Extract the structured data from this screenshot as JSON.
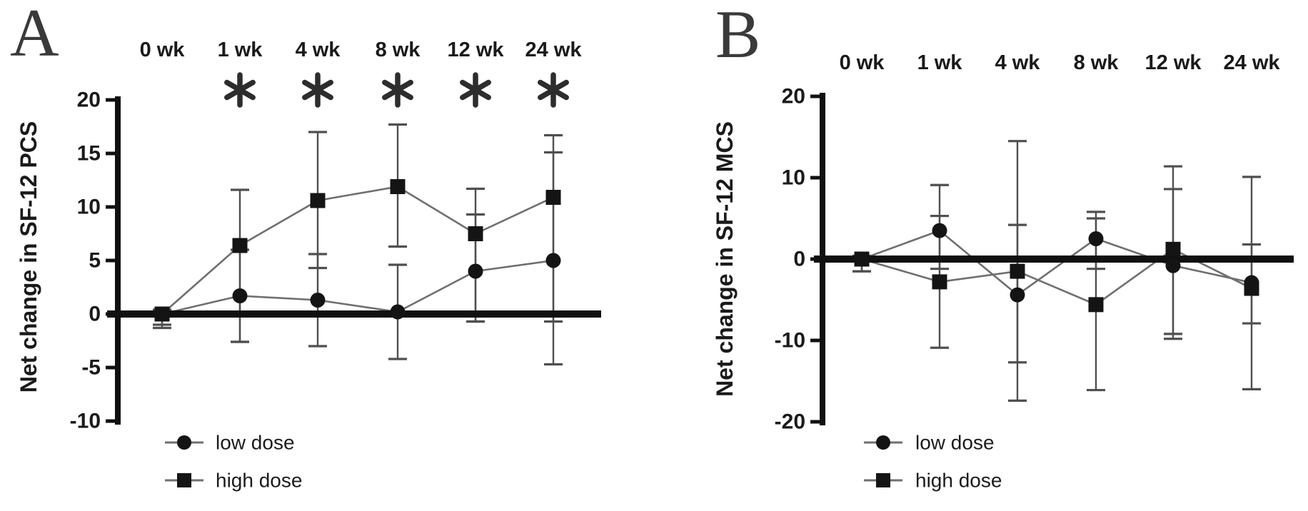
{
  "figure": {
    "background": "#ffffff",
    "colors": {
      "marker": "#141414",
      "series_line": "#6f6f6f",
      "error_bar": "#4f4f4f",
      "axis": "#101010",
      "tick_label": "#1a1a1a",
      "panel_letter": "#3a3a3a",
      "asterisk": "#2d2d2d",
      "legend_text": "#1c1c1c"
    }
  },
  "chart_data": [
    {
      "panel_label": "A",
      "type": "line",
      "ylabel": "Net change in SF-12 PCS",
      "categories": [
        "0 wk",
        "1 wk",
        "4 wk",
        "8 wk",
        "12 wk",
        "24 wk"
      ],
      "ylim": [
        -10,
        20
      ],
      "yticks": [
        20,
        15,
        10,
        5,
        0,
        -5,
        -10
      ],
      "grid": false,
      "significance": [
        "",
        "*",
        "*",
        "*",
        "*",
        "*"
      ],
      "legend_position": "bottom-left",
      "series": [
        {
          "name": "low dose",
          "marker": "circle",
          "values": [
            0,
            1.7,
            1.3,
            0.2,
            4.0,
            5.0
          ],
          "err_low": [
            -1.0,
            -2.6,
            -3.0,
            -4.2,
            -0.7,
            -4.7
          ],
          "err_high": [
            0.4,
            6.0,
            5.6,
            4.6,
            9.3,
            15.1
          ]
        },
        {
          "name": "high dose",
          "marker": "square",
          "values": [
            0,
            6.4,
            10.6,
            11.9,
            7.5,
            10.9
          ],
          "err_low": [
            -1.3,
            -2.6,
            4.3,
            6.3,
            -0.7,
            -0.7
          ],
          "err_high": [
            0.4,
            11.6,
            17.0,
            17.7,
            11.7,
            16.7
          ]
        }
      ]
    },
    {
      "panel_label": "B",
      "type": "line",
      "ylabel": "Net change in SF-12 MCS",
      "categories": [
        "0 wk",
        "1 wk",
        "4 wk",
        "8 wk",
        "12 wk",
        "24 wk"
      ],
      "ylim": [
        -20,
        20
      ],
      "yticks": [
        20,
        10,
        0,
        -10,
        -20
      ],
      "grid": false,
      "significance": [
        "",
        "",
        "",
        "",
        "",
        ""
      ],
      "legend_position": "bottom-left",
      "series": [
        {
          "name": "low dose",
          "marker": "circle",
          "values": [
            0,
            3.5,
            -4.4,
            2.5,
            -0.8,
            -2.9
          ],
          "err_low": [
            -1.5,
            -1.2,
            -12.7,
            -1.2,
            -9.8,
            -7.9
          ],
          "err_high": [
            0.4,
            9.1,
            4.2,
            5.8,
            8.6,
            1.8
          ]
        },
        {
          "name": "high dose",
          "marker": "square",
          "values": [
            0,
            -2.8,
            -1.5,
            -5.6,
            1.2,
            -3.6
          ],
          "err_low": [
            -1.5,
            -10.9,
            -17.4,
            -16.1,
            -9.2,
            -16.0
          ],
          "err_high": [
            0.4,
            5.3,
            14.5,
            5.0,
            11.4,
            10.1
          ]
        }
      ]
    }
  ]
}
